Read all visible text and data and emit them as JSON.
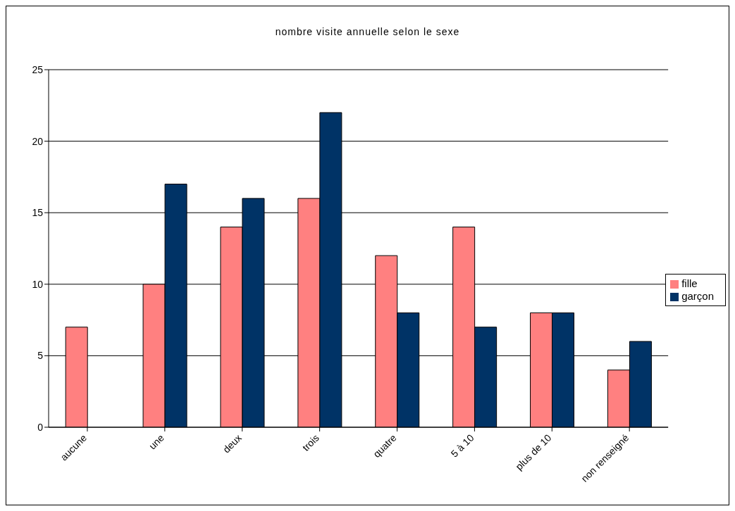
{
  "chart_data": {
    "type": "bar",
    "title": "nombre visite annuelle selon le sexe",
    "categories": [
      "aucune",
      "une",
      "deux",
      "trois",
      "quatre",
      "5 à 10",
      "plus de 10",
      "non renseigné"
    ],
    "series": [
      {
        "name": "fille",
        "color": "#ff8080",
        "values": [
          7,
          10,
          14,
          16,
          12,
          14,
          8,
          4
        ]
      },
      {
        "name": "garçon",
        "color": "#003366",
        "values": [
          0,
          17,
          16,
          22,
          8,
          7,
          8,
          6
        ]
      }
    ],
    "ylim": [
      0,
      25
    ],
    "yticks": [
      0,
      5,
      10,
      15,
      20,
      25
    ],
    "grid": "y",
    "legend": "right"
  }
}
